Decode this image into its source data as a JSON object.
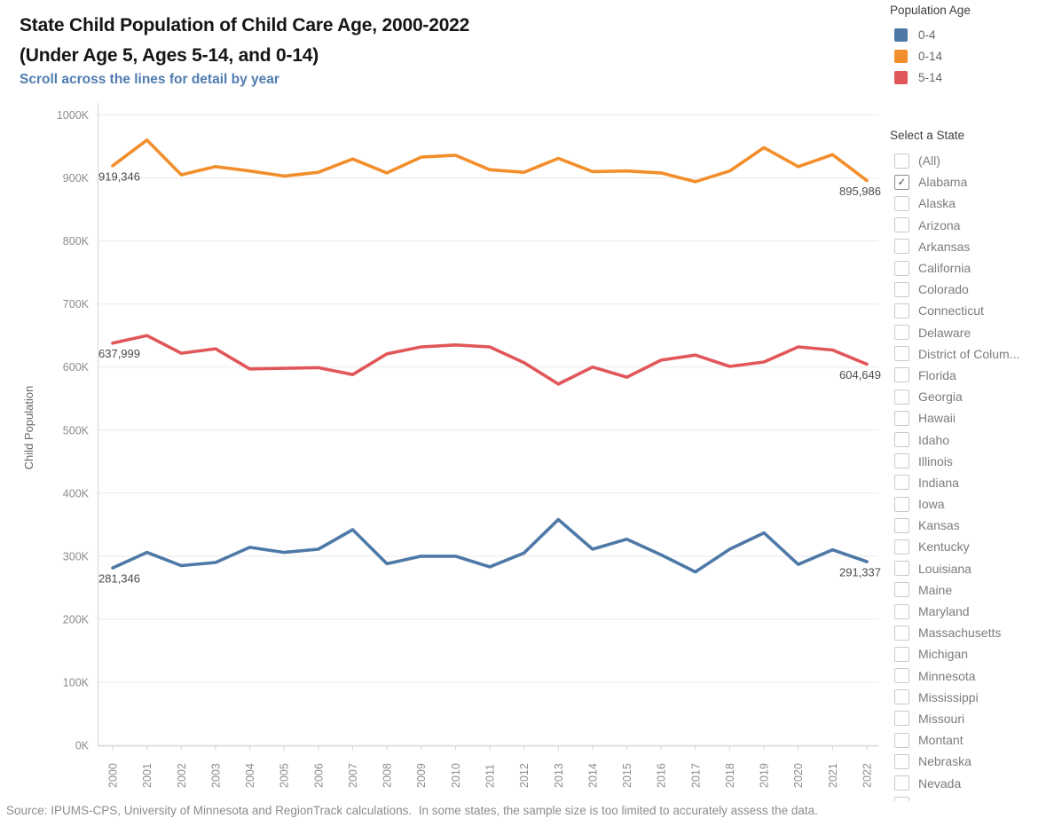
{
  "header": {
    "title_line1": "State Child Population of Child Care Age, 2000-2022",
    "title_line2": "(Under Age 5, Ages 5-14, and 0-14)",
    "subtitle": "Scroll across the lines for detail by year"
  },
  "legend": {
    "title": "Population Age",
    "items": [
      {
        "label": "0-4",
        "color": "#4e79a7"
      },
      {
        "label": "0-14",
        "color": "#f28e2b"
      },
      {
        "label": "5-14",
        "color": "#e15759"
      }
    ]
  },
  "state_filter": {
    "title": "Select a State",
    "items": [
      {
        "label": "(All)",
        "checked": false
      },
      {
        "label": "Alabama",
        "checked": true
      },
      {
        "label": "Alaska",
        "checked": false
      },
      {
        "label": "Arizona",
        "checked": false
      },
      {
        "label": "Arkansas",
        "checked": false
      },
      {
        "label": "California",
        "checked": false
      },
      {
        "label": "Colorado",
        "checked": false
      },
      {
        "label": "Connecticut",
        "checked": false
      },
      {
        "label": "Delaware",
        "checked": false
      },
      {
        "label": "District of Colum...",
        "checked": false
      },
      {
        "label": "Florida",
        "checked": false
      },
      {
        "label": "Georgia",
        "checked": false
      },
      {
        "label": "Hawaii",
        "checked": false
      },
      {
        "label": "Idaho",
        "checked": false
      },
      {
        "label": "Illinois",
        "checked": false
      },
      {
        "label": "Indiana",
        "checked": false
      },
      {
        "label": "Iowa",
        "checked": false
      },
      {
        "label": "Kansas",
        "checked": false
      },
      {
        "label": "Kentucky",
        "checked": false
      },
      {
        "label": "Louisiana",
        "checked": false
      },
      {
        "label": "Maine",
        "checked": false
      },
      {
        "label": "Maryland",
        "checked": false
      },
      {
        "label": "Massachusetts",
        "checked": false
      },
      {
        "label": "Michigan",
        "checked": false
      },
      {
        "label": "Minnesota",
        "checked": false
      },
      {
        "label": "Mississippi",
        "checked": false
      },
      {
        "label": "Missouri",
        "checked": false
      },
      {
        "label": "Montant",
        "checked": false
      },
      {
        "label": "Nebraska",
        "checked": false
      },
      {
        "label": "Nevada",
        "checked": false
      }
    ]
  },
  "footer": {
    "source": "Source: IPUMS-CPS, University of Minnesota and RegionTrack calculations.  In some states, the sample size is too limited to accurately assess the data."
  },
  "chart_data": {
    "type": "line",
    "title": "State Child Population of Child Care Age, 2000-2022 (Under Age 5, Ages 5-14, and 0-14)",
    "xlabel": "",
    "ylabel": "Child Population",
    "ylim": [
      0,
      1000000
    ],
    "grid": true,
    "legend_position": "top-right",
    "x": [
      2000,
      2001,
      2002,
      2003,
      2004,
      2005,
      2006,
      2007,
      2008,
      2009,
      2010,
      2011,
      2012,
      2013,
      2014,
      2015,
      2016,
      2017,
      2018,
      2019,
      2020,
      2021,
      2022
    ],
    "y_ticks": [
      {
        "value": 0,
        "label": "0K"
      },
      {
        "value": 100000,
        "label": "100K"
      },
      {
        "value": 200000,
        "label": "200K"
      },
      {
        "value": 300000,
        "label": "300K"
      },
      {
        "value": 400000,
        "label": "400K"
      },
      {
        "value": 500000,
        "label": "500K"
      },
      {
        "value": 600000,
        "label": "600K"
      },
      {
        "value": 700000,
        "label": "700K"
      },
      {
        "value": 800000,
        "label": "800K"
      },
      {
        "value": 900000,
        "label": "900K"
      },
      {
        "value": 1000000,
        "label": "1000K"
      }
    ],
    "series": [
      {
        "name": "0-4",
        "color": "#4e79a7",
        "values": [
          281346,
          306000,
          285000,
          290000,
          314000,
          306000,
          311000,
          342000,
          288000,
          300000,
          300000,
          283000,
          305000,
          358000,
          311000,
          327000,
          302000,
          275000,
          311000,
          337000,
          287000,
          310000,
          291337
        ]
      },
      {
        "name": "0-14",
        "color": "#f28e2b",
        "values": [
          919346,
          960000,
          905000,
          918000,
          911000,
          903000,
          909000,
          930000,
          908000,
          933000,
          936000,
          913000,
          909000,
          931000,
          910000,
          911000,
          908000,
          894000,
          911000,
          948000,
          918000,
          937000,
          895986
        ]
      },
      {
        "name": "5-14",
        "color": "#e15759",
        "values": [
          637999,
          650000,
          622000,
          629000,
          597000,
          598000,
          599000,
          588000,
          621000,
          632000,
          635000,
          632000,
          607000,
          573000,
          600000,
          584000,
          611000,
          619000,
          601000,
          608000,
          632000,
          627000,
          604649
        ]
      }
    ],
    "annotations": [
      {
        "series": "0-14",
        "x": 2000,
        "text": "919,346"
      },
      {
        "series": "0-14",
        "x": 2022,
        "text": "895,986"
      },
      {
        "series": "5-14",
        "x": 2000,
        "text": "637,999"
      },
      {
        "series": "5-14",
        "x": 2022,
        "text": "604,649"
      },
      {
        "series": "0-4",
        "x": 2000,
        "text": "281,346"
      },
      {
        "series": "0-4",
        "x": 2022,
        "text": "291,337"
      }
    ]
  }
}
